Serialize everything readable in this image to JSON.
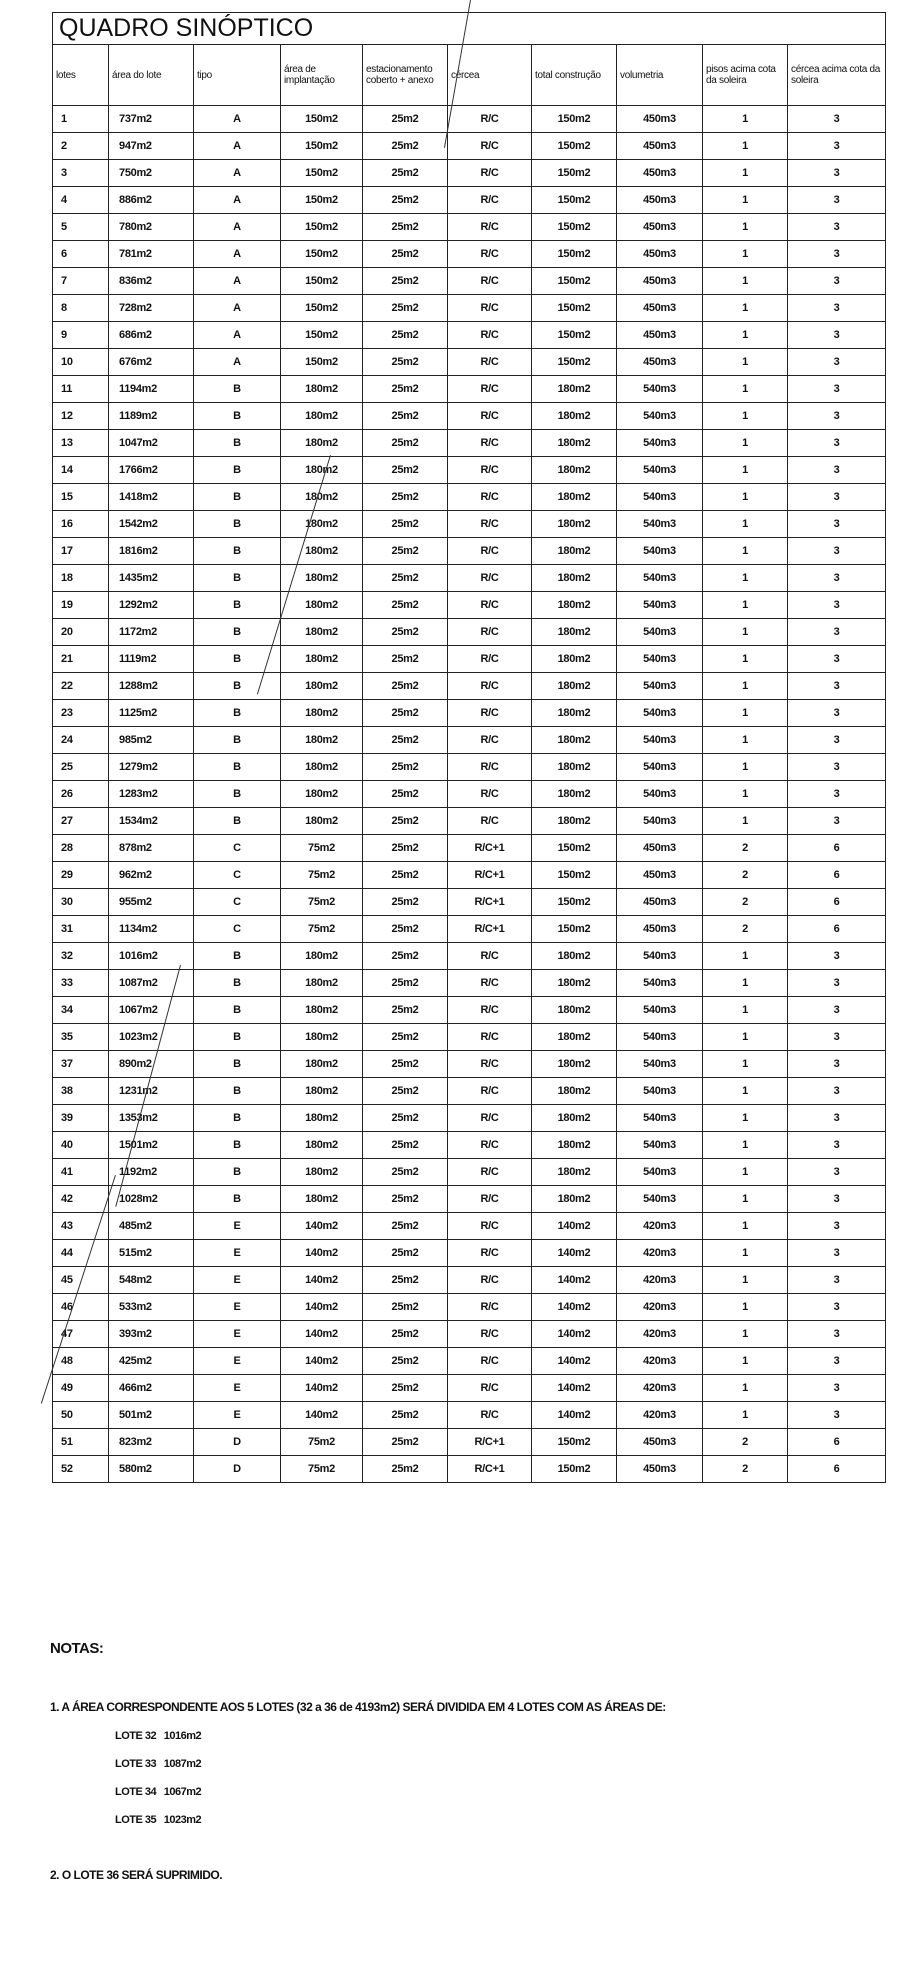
{
  "title": "QUADRO SINÓPTICO",
  "columns": [
    "lotes",
    "área do lote",
    "tipo",
    "área de implantação",
    "estacionamento coberto + anexo",
    "cércea",
    "total construção",
    "volumetria",
    "pisos acima cota da soleira",
    "cércea acima cota da soleira"
  ],
  "rows": [
    [
      "1",
      "737m2",
      "A",
      "150m2",
      "25m2",
      "R/C",
      "150m2",
      "450m3",
      "1",
      "3"
    ],
    [
      "2",
      "947m2",
      "A",
      "150m2",
      "25m2",
      "R/C",
      "150m2",
      "450m3",
      "1",
      "3"
    ],
    [
      "3",
      "750m2",
      "A",
      "150m2",
      "25m2",
      "R/C",
      "150m2",
      "450m3",
      "1",
      "3"
    ],
    [
      "4",
      "886m2",
      "A",
      "150m2",
      "25m2",
      "R/C",
      "150m2",
      "450m3",
      "1",
      "3"
    ],
    [
      "5",
      "780m2",
      "A",
      "150m2",
      "25m2",
      "R/C",
      "150m2",
      "450m3",
      "1",
      "3"
    ],
    [
      "6",
      "781m2",
      "A",
      "150m2",
      "25m2",
      "R/C",
      "150m2",
      "450m3",
      "1",
      "3"
    ],
    [
      "7",
      "836m2",
      "A",
      "150m2",
      "25m2",
      "R/C",
      "150m2",
      "450m3",
      "1",
      "3"
    ],
    [
      "8",
      "728m2",
      "A",
      "150m2",
      "25m2",
      "R/C",
      "150m2",
      "450m3",
      "1",
      "3"
    ],
    [
      "9",
      "686m2",
      "A",
      "150m2",
      "25m2",
      "R/C",
      "150m2",
      "450m3",
      "1",
      "3"
    ],
    [
      "10",
      "676m2",
      "A",
      "150m2",
      "25m2",
      "R/C",
      "150m2",
      "450m3",
      "1",
      "3"
    ],
    [
      "11",
      "1194m2",
      "B",
      "180m2",
      "25m2",
      "R/C",
      "180m2",
      "540m3",
      "1",
      "3"
    ],
    [
      "12",
      "1189m2",
      "B",
      "180m2",
      "25m2",
      "R/C",
      "180m2",
      "540m3",
      "1",
      "3"
    ],
    [
      "13",
      "1047m2",
      "B",
      "180m2",
      "25m2",
      "R/C",
      "180m2",
      "540m3",
      "1",
      "3"
    ],
    [
      "14",
      "1766m2",
      "B",
      "180m2",
      "25m2",
      "R/C",
      "180m2",
      "540m3",
      "1",
      "3"
    ],
    [
      "15",
      "1418m2",
      "B",
      "180m2",
      "25m2",
      "R/C",
      "180m2",
      "540m3",
      "1",
      "3"
    ],
    [
      "16",
      "1542m2",
      "B",
      "180m2",
      "25m2",
      "R/C",
      "180m2",
      "540m3",
      "1",
      "3"
    ],
    [
      "17",
      "1816m2",
      "B",
      "180m2",
      "25m2",
      "R/C",
      "180m2",
      "540m3",
      "1",
      "3"
    ],
    [
      "18",
      "1435m2",
      "B",
      "180m2",
      "25m2",
      "R/C",
      "180m2",
      "540m3",
      "1",
      "3"
    ],
    [
      "19",
      "1292m2",
      "B",
      "180m2",
      "25m2",
      "R/C",
      "180m2",
      "540m3",
      "1",
      "3"
    ],
    [
      "20",
      "1172m2",
      "B",
      "180m2",
      "25m2",
      "R/C",
      "180m2",
      "540m3",
      "1",
      "3"
    ],
    [
      "21",
      "1119m2",
      "B",
      "180m2",
      "25m2",
      "R/C",
      "180m2",
      "540m3",
      "1",
      "3"
    ],
    [
      "22",
      "1288m2",
      "B",
      "180m2",
      "25m2",
      "R/C",
      "180m2",
      "540m3",
      "1",
      "3"
    ],
    [
      "23",
      "1125m2",
      "B",
      "180m2",
      "25m2",
      "R/C",
      "180m2",
      "540m3",
      "1",
      "3"
    ],
    [
      "24",
      "985m2",
      "B",
      "180m2",
      "25m2",
      "R/C",
      "180m2",
      "540m3",
      "1",
      "3"
    ],
    [
      "25",
      "1279m2",
      "B",
      "180m2",
      "25m2",
      "R/C",
      "180m2",
      "540m3",
      "1",
      "3"
    ],
    [
      "26",
      "1283m2",
      "B",
      "180m2",
      "25m2",
      "R/C",
      "180m2",
      "540m3",
      "1",
      "3"
    ],
    [
      "27",
      "1534m2",
      "B",
      "180m2",
      "25m2",
      "R/C",
      "180m2",
      "540m3",
      "1",
      "3"
    ],
    [
      "28",
      "878m2",
      "C",
      "75m2",
      "25m2",
      "R/C+1",
      "150m2",
      "450m3",
      "2",
      "6"
    ],
    [
      "29",
      "962m2",
      "C",
      "75m2",
      "25m2",
      "R/C+1",
      "150m2",
      "450m3",
      "2",
      "6"
    ],
    [
      "30",
      "955m2",
      "C",
      "75m2",
      "25m2",
      "R/C+1",
      "150m2",
      "450m3",
      "2",
      "6"
    ],
    [
      "31",
      "1134m2",
      "C",
      "75m2",
      "25m2",
      "R/C+1",
      "150m2",
      "450m3",
      "2",
      "6"
    ],
    [
      "32",
      "1016m2",
      "B",
      "180m2",
      "25m2",
      "R/C",
      "180m2",
      "540m3",
      "1",
      "3"
    ],
    [
      "33",
      "1087m2",
      "B",
      "180m2",
      "25m2",
      "R/C",
      "180m2",
      "540m3",
      "1",
      "3"
    ],
    [
      "34",
      "1067m2",
      "B",
      "180m2",
      "25m2",
      "R/C",
      "180m2",
      "540m3",
      "1",
      "3"
    ],
    [
      "35",
      "1023m2",
      "B",
      "180m2",
      "25m2",
      "R/C",
      "180m2",
      "540m3",
      "1",
      "3"
    ],
    [
      "37",
      "890m2",
      "B",
      "180m2",
      "25m2",
      "R/C",
      "180m2",
      "540m3",
      "1",
      "3"
    ],
    [
      "38",
      "1231m2",
      "B",
      "180m2",
      "25m2",
      "R/C",
      "180m2",
      "540m3",
      "1",
      "3"
    ],
    [
      "39",
      "1353m2",
      "B",
      "180m2",
      "25m2",
      "R/C",
      "180m2",
      "540m3",
      "1",
      "3"
    ],
    [
      "40",
      "1501m2",
      "B",
      "180m2",
      "25m2",
      "R/C",
      "180m2",
      "540m3",
      "1",
      "3"
    ],
    [
      "41",
      "1192m2",
      "B",
      "180m2",
      "25m2",
      "R/C",
      "180m2",
      "540m3",
      "1",
      "3"
    ],
    [
      "42",
      "1028m2",
      "B",
      "180m2",
      "25m2",
      "R/C",
      "180m2",
      "540m3",
      "1",
      "3"
    ],
    [
      "43",
      "485m2",
      "E",
      "140m2",
      "25m2",
      "R/C",
      "140m2",
      "420m3",
      "1",
      "3"
    ],
    [
      "44",
      "515m2",
      "E",
      "140m2",
      "25m2",
      "R/C",
      "140m2",
      "420m3",
      "1",
      "3"
    ],
    [
      "45",
      "548m2",
      "E",
      "140m2",
      "25m2",
      "R/C",
      "140m2",
      "420m3",
      "1",
      "3"
    ],
    [
      "46",
      "533m2",
      "E",
      "140m2",
      "25m2",
      "R/C",
      "140m2",
      "420m3",
      "1",
      "3"
    ],
    [
      "47",
      "393m2",
      "E",
      "140m2",
      "25m2",
      "R/C",
      "140m2",
      "420m3",
      "1",
      "3"
    ],
    [
      "48",
      "425m2",
      "E",
      "140m2",
      "25m2",
      "R/C",
      "140m2",
      "420m3",
      "1",
      "3"
    ],
    [
      "49",
      "466m2",
      "E",
      "140m2",
      "25m2",
      "R/C",
      "140m2",
      "420m3",
      "1",
      "3"
    ],
    [
      "50",
      "501m2",
      "E",
      "140m2",
      "25m2",
      "R/C",
      "140m2",
      "420m3",
      "1",
      "3"
    ],
    [
      "51",
      "823m2",
      "D",
      "75m2",
      "25m2",
      "R/C+1",
      "150m2",
      "450m3",
      "2",
      "6"
    ],
    [
      "52",
      "580m2",
      "D",
      "75m2",
      "25m2",
      "R/C+1",
      "150m2",
      "450m3",
      "2",
      "6"
    ]
  ],
  "notes": {
    "heading": "NOTAS:",
    "note1": "1. A ÁREA CORRESPONDENTE AOS 5 LOTES (32 a 36 de 4193m2) SERÁ DIVIDIDA EM 4 LOTES COM AS ÁREAS DE:",
    "lots": [
      "LOTE 32   1016m2",
      "LOTE 33   1087m2",
      "LOTE 34   1067m2",
      "LOTE 35   1023m2"
    ],
    "note2": "2. O LOTE 36 SERÁ SUPRIMIDO."
  }
}
